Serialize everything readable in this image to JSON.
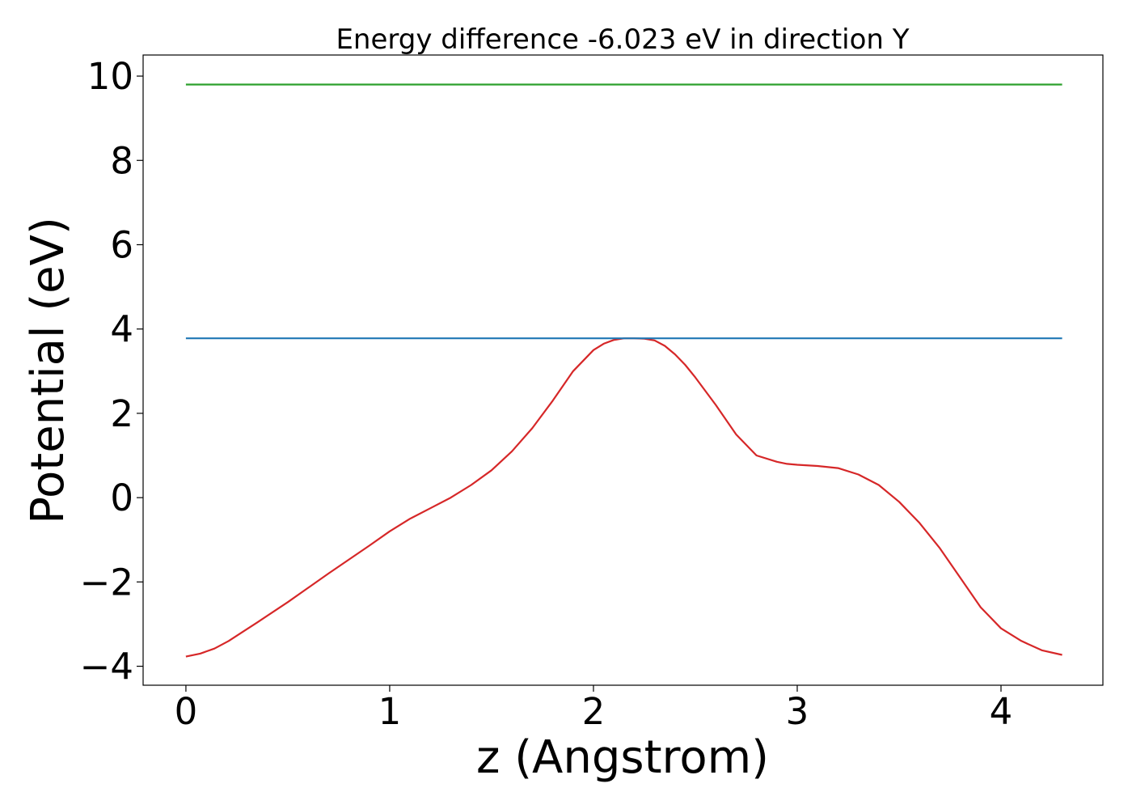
{
  "chart_data": {
    "type": "line",
    "title": "Energy difference -6.023 eV in direction Y",
    "xlabel": "z (Angstrom)",
    "ylabel": "Potential (eV)",
    "xlim": [
      -0.21,
      4.5
    ],
    "ylim": [
      -4.45,
      10.5
    ],
    "xticks": [
      0,
      1,
      2,
      3,
      4
    ],
    "xtick_labels": [
      "0",
      "1",
      "2",
      "3",
      "4"
    ],
    "yticks": [
      -4,
      -2,
      0,
      2,
      4,
      6,
      8,
      10
    ],
    "ytick_labels": [
      "−4",
      "−2",
      "0",
      "2",
      "4",
      "6",
      "8",
      "10"
    ],
    "grid": false,
    "series": [
      {
        "color": "#d62728",
        "x": [
          0,
          0.07,
          0.14,
          0.21,
          0.28,
          0.35,
          0.5,
          0.7,
          0.9,
          1.0,
          1.1,
          1.2,
          1.3,
          1.4,
          1.5,
          1.6,
          1.7,
          1.8,
          1.9,
          2.0,
          2.05,
          2.1,
          2.15,
          2.2,
          2.25,
          2.3,
          2.35,
          2.4,
          2.45,
          2.5,
          2.6,
          2.7,
          2.8,
          2.9,
          2.95,
          3.0,
          3.1,
          3.2,
          3.3,
          3.4,
          3.5,
          3.6,
          3.7,
          3.8,
          3.9,
          4.0,
          4.1,
          4.2,
          4.3
        ],
        "y": [
          -3.77,
          -3.7,
          -3.58,
          -3.4,
          -3.18,
          -2.96,
          -2.48,
          -1.8,
          -1.14,
          -0.8,
          -0.5,
          -0.25,
          0.0,
          0.3,
          0.65,
          1.1,
          1.65,
          2.3,
          3.0,
          3.5,
          3.65,
          3.74,
          3.78,
          3.78,
          3.77,
          3.73,
          3.6,
          3.4,
          3.15,
          2.85,
          2.2,
          1.5,
          1.0,
          0.85,
          0.8,
          0.78,
          0.75,
          0.7,
          0.55,
          0.3,
          -0.1,
          -0.6,
          -1.2,
          -1.9,
          -2.6,
          -3.1,
          -3.4,
          -3.62,
          -3.73
        ]
      },
      {
        "color": "#1f77b4",
        "x": [
          0,
          4.3
        ],
        "y": [
          3.78,
          3.78
        ]
      },
      {
        "color": "#2ca02c",
        "x": [
          0,
          4.3
        ],
        "y": [
          9.8,
          9.8
        ]
      }
    ]
  }
}
